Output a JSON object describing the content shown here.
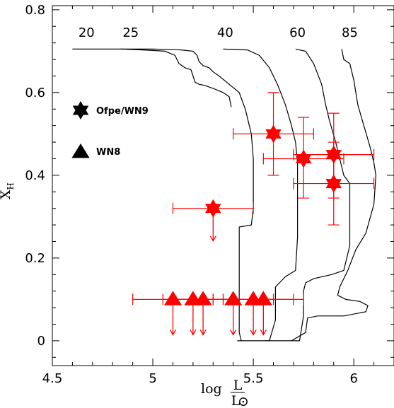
{
  "chart_data": {
    "type": "scatter",
    "x_axis": {
      "range": [
        4.5,
        6.2
      ],
      "ticks": [
        4.5,
        5,
        5.5,
        6
      ],
      "tick_labels": [
        "4.5",
        "5",
        "5.5",
        "6"
      ],
      "label_prefix": "log",
      "label_numerator": "L",
      "label_denominator": "L",
      "label_denominator_symbol": "⊙"
    },
    "y_axis": {
      "range": [
        -0.06,
        0.81
      ],
      "ticks": [
        0,
        0.2,
        0.4,
        0.6,
        0.8
      ],
      "tick_labels": [
        "0",
        "0.2",
        "0.4",
        "0.6",
        "0.8"
      ],
      "label": "X",
      "label_subscript": "H"
    },
    "track_labels": [
      {
        "text": "20",
        "x": 4.67,
        "y": 0.735
      },
      {
        "text": "25",
        "x": 4.89,
        "y": 0.735
      },
      {
        "text": "40",
        "x": 5.36,
        "y": 0.735
      },
      {
        "text": "60",
        "x": 5.72,
        "y": 0.735
      },
      {
        "text": "85",
        "x": 5.98,
        "y": 0.735
      }
    ],
    "tracks": [
      {
        "mass": "20",
        "points": [
          [
            4.6,
            0.705
          ],
          [
            4.84,
            0.705
          ],
          [
            4.95,
            0.703
          ],
          [
            5.06,
            0.7
          ],
          [
            5.11,
            0.69
          ],
          [
            5.13,
            0.67
          ],
          [
            5.16,
            0.66
          ],
          [
            5.19,
            0.655
          ],
          [
            5.2,
            0.64
          ],
          [
            5.21,
            0.625
          ],
          [
            5.23,
            0.62
          ],
          [
            5.26,
            0.617
          ],
          [
            5.3,
            0.61
          ],
          [
            5.35,
            0.6
          ],
          [
            5.38,
            0.59
          ],
          [
            5.39,
            0.565
          ]
        ]
      },
      {
        "mass": "25",
        "points": [
          [
            4.84,
            0.705
          ],
          [
            5.0,
            0.705
          ],
          [
            5.14,
            0.703
          ],
          [
            5.2,
            0.7
          ],
          [
            5.22,
            0.69
          ],
          [
            5.23,
            0.675
          ],
          [
            5.25,
            0.665
          ],
          [
            5.28,
            0.66
          ],
          [
            5.3,
            0.65
          ],
          [
            5.33,
            0.64
          ],
          [
            5.38,
            0.62
          ],
          [
            5.43,
            0.6
          ],
          [
            5.46,
            0.56
          ],
          [
            5.49,
            0.5
          ],
          [
            5.5,
            0.44
          ],
          [
            5.5,
            0.32
          ],
          [
            5.49,
            0.28
          ],
          [
            5.43,
            0.275
          ],
          [
            5.43,
            0.02
          ],
          [
            5.44,
            0.0
          ]
        ]
      },
      {
        "mass": "40",
        "points": [
          [
            5.35,
            0.705
          ],
          [
            5.47,
            0.703
          ],
          [
            5.53,
            0.69
          ],
          [
            5.58,
            0.66
          ],
          [
            5.62,
            0.62
          ],
          [
            5.66,
            0.57
          ],
          [
            5.69,
            0.52
          ],
          [
            5.71,
            0.48
          ],
          [
            5.72,
            0.43
          ],
          [
            5.72,
            0.25
          ],
          [
            5.71,
            0.17
          ],
          [
            5.66,
            0.155
          ],
          [
            5.63,
            0.14
          ],
          [
            5.61,
            0.13
          ],
          [
            5.61,
            0.05
          ],
          [
            5.58,
            0.0
          ],
          [
            5.42,
            0.0
          ]
        ]
      },
      {
        "mass": "60",
        "points": [
          [
            5.71,
            0.705
          ],
          [
            5.76,
            0.7
          ],
          [
            5.8,
            0.67
          ],
          [
            5.84,
            0.62
          ],
          [
            5.86,
            0.57
          ],
          [
            5.88,
            0.53
          ],
          [
            5.91,
            0.48
          ],
          [
            5.95,
            0.4
          ],
          [
            5.98,
            0.38
          ],
          [
            5.98,
            0.23
          ],
          [
            5.95,
            0.17
          ],
          [
            5.89,
            0.16
          ],
          [
            5.8,
            0.15
          ],
          [
            5.76,
            0.14
          ],
          [
            5.75,
            0.12
          ],
          [
            5.75,
            0.09
          ],
          [
            5.75,
            0.06
          ],
          [
            5.73,
            0.0
          ],
          [
            5.56,
            0.0
          ]
        ]
      },
      {
        "mass": "85",
        "points": [
          [
            5.94,
            0.705
          ],
          [
            5.95,
            0.68
          ],
          [
            5.98,
            0.67
          ],
          [
            6.0,
            0.63
          ],
          [
            6.02,
            0.57
          ],
          [
            6.05,
            0.52
          ],
          [
            6.08,
            0.47
          ],
          [
            6.1,
            0.43
          ],
          [
            6.11,
            0.4
          ],
          [
            6.1,
            0.33
          ],
          [
            6.06,
            0.26
          ],
          [
            6.01,
            0.22
          ],
          [
            5.97,
            0.17
          ],
          [
            5.93,
            0.13
          ],
          [
            5.92,
            0.11
          ],
          [
            5.96,
            0.1
          ],
          [
            6.03,
            0.095
          ],
          [
            6.07,
            0.085
          ],
          [
            6.06,
            0.07
          ],
          [
            5.95,
            0.06
          ],
          [
            5.82,
            0.06
          ],
          [
            5.77,
            0.055
          ],
          [
            5.76,
            0.02
          ],
          [
            5.69,
            0.0
          ]
        ]
      }
    ],
    "series": [
      {
        "name": "Ofpe/WN9",
        "marker": "star6",
        "points": [
          {
            "x": 5.3,
            "y": 0.32,
            "xerr": [
              5.1,
              5.5
            ],
            "yerr": null,
            "upper_limit": true
          },
          {
            "x": 5.6,
            "y": 0.5,
            "xerr": [
              5.4,
              5.8
            ],
            "yerr": [
              0.4,
              0.6
            ],
            "upper_limit": false
          },
          {
            "x": 5.75,
            "y": 0.44,
            "xerr": [
              5.55,
              5.95
            ],
            "yerr": [
              0.345,
              0.54
            ],
            "upper_limit": false
          },
          {
            "x": 5.9,
            "y": 0.45,
            "xerr": [
              5.7,
              6.1
            ],
            "yerr": [
              0.345,
              0.55
            ],
            "upper_limit": false
          },
          {
            "x": 5.9,
            "y": 0.38,
            "xerr": [
              5.7,
              6.1
            ],
            "yerr": [
              0.28,
              0.48
            ],
            "upper_limit": false
          }
        ]
      },
      {
        "name": "WN8",
        "marker": "triangle",
        "points": [
          {
            "x": 5.1,
            "y": 0.1,
            "xerr": [
              4.9,
              5.3
            ],
            "yerr": null,
            "upper_limit": true
          },
          {
            "x": 5.2,
            "y": 0.1,
            "xerr": [
              5.05,
              5.35
            ],
            "yerr": null,
            "upper_limit": true
          },
          {
            "x": 5.25,
            "y": 0.1,
            "xerr": [
              5.1,
              5.4
            ],
            "yerr": null,
            "upper_limit": true
          },
          {
            "x": 5.4,
            "y": 0.1,
            "xerr": [
              5.2,
              5.6
            ],
            "yerr": null,
            "upper_limit": true
          },
          {
            "x": 5.5,
            "y": 0.1,
            "xerr": [
              5.3,
              5.7
            ],
            "yerr": null,
            "upper_limit": true
          },
          {
            "x": 5.55,
            "y": 0.1,
            "xerr": [
              5.35,
              5.75
            ],
            "yerr": null,
            "upper_limit": true
          }
        ]
      }
    ],
    "legend": {
      "placement": "upper-left",
      "entries": [
        {
          "label": "Ofpe/WN9",
          "marker": "star6"
        },
        {
          "label": "WN8",
          "marker": "triangle"
        }
      ]
    },
    "colors": {
      "data": "#ff0000",
      "tracks": "#000000",
      "legend_marker": "#000000"
    }
  }
}
